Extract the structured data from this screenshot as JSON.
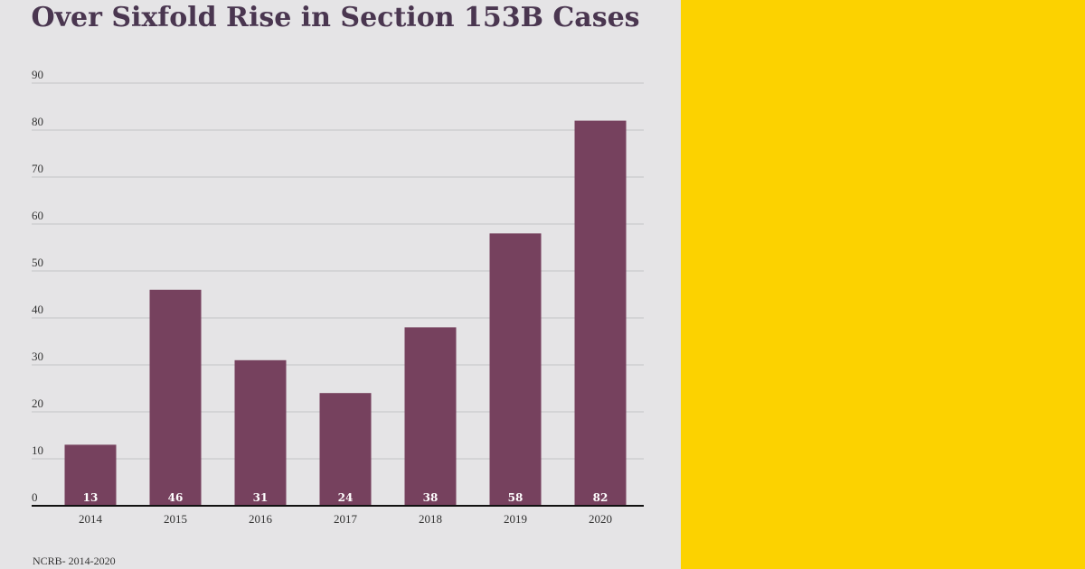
{
  "colors": {
    "panel_bg": "#e5e4e6",
    "accent_panel": "#fcd200",
    "bar": "#76415e",
    "title": "#4a3650",
    "grid": "#c4c4c6",
    "axis": "#111111"
  },
  "chart_data": {
    "type": "bar",
    "title": "Over Sixfold Rise in Section 153B Cases",
    "categories": [
      "2014",
      "2015",
      "2016",
      "2017",
      "2018",
      "2019",
      "2020"
    ],
    "values": [
      13,
      46,
      31,
      24,
      38,
      58,
      82
    ],
    "data_labels": [
      "13",
      "46",
      "31",
      "24",
      "38",
      "58",
      "82"
    ],
    "yticks": [
      0,
      10,
      20,
      30,
      40,
      50,
      60,
      70,
      80,
      90
    ],
    "ylim": [
      0,
      90
    ],
    "xlabel": "",
    "ylabel": "",
    "grid": true,
    "legend": null
  },
  "source": "NCRB- 2014-2020"
}
